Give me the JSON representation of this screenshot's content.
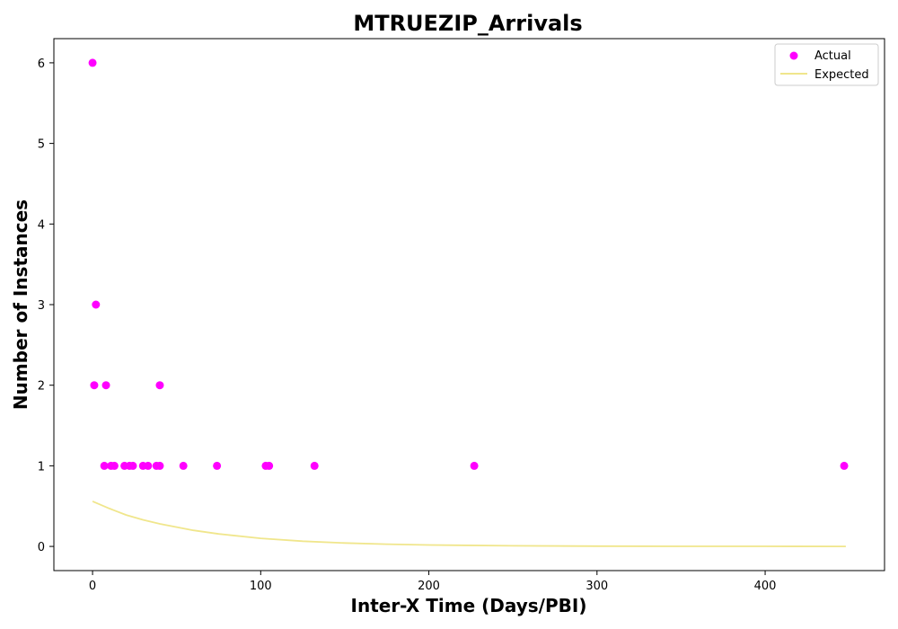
{
  "chart_data": {
    "type": "scatter",
    "title": "MTRUEZIP_Arrivals",
    "xlabel": "Inter-X Time (Days/PBI)",
    "ylabel": "Number of Instances",
    "xlim": [
      -23,
      471
    ],
    "ylim": [
      -0.3,
      6.3
    ],
    "x_ticks": [
      0,
      100,
      200,
      300,
      400
    ],
    "y_ticks": [
      0,
      1,
      2,
      3,
      4,
      5,
      6
    ],
    "grid": false,
    "legend_position": "top-right",
    "series": [
      {
        "name": "Actual",
        "kind": "scatter",
        "color": "#ff00ff",
        "points": [
          {
            "x": 0,
            "y": 6
          },
          {
            "x": 1,
            "y": 2
          },
          {
            "x": 2,
            "y": 3
          },
          {
            "x": 7,
            "y": 1
          },
          {
            "x": 8,
            "y": 2
          },
          {
            "x": 11,
            "y": 1
          },
          {
            "x": 13,
            "y": 1
          },
          {
            "x": 19,
            "y": 1
          },
          {
            "x": 22,
            "y": 1
          },
          {
            "x": 24,
            "y": 1
          },
          {
            "x": 30,
            "y": 1
          },
          {
            "x": 33,
            "y": 1
          },
          {
            "x": 38,
            "y": 1
          },
          {
            "x": 40,
            "y": 1
          },
          {
            "x": 40,
            "y": 2
          },
          {
            "x": 54,
            "y": 1
          },
          {
            "x": 74,
            "y": 1
          },
          {
            "x": 103,
            "y": 1
          },
          {
            "x": 105,
            "y": 1
          },
          {
            "x": 132,
            "y": 1
          },
          {
            "x": 227,
            "y": 1
          },
          {
            "x": 447,
            "y": 1
          }
        ]
      },
      {
        "name": "Expected",
        "kind": "line",
        "color": "#f0e68c",
        "points": [
          {
            "x": 0,
            "y": 0.56
          },
          {
            "x": 10,
            "y": 0.47
          },
          {
            "x": 20,
            "y": 0.39
          },
          {
            "x": 30,
            "y": 0.33
          },
          {
            "x": 40,
            "y": 0.28
          },
          {
            "x": 50,
            "y": 0.24
          },
          {
            "x": 60,
            "y": 0.2
          },
          {
            "x": 75,
            "y": 0.155
          },
          {
            "x": 100,
            "y": 0.1
          },
          {
            "x": 125,
            "y": 0.065
          },
          {
            "x": 150,
            "y": 0.042
          },
          {
            "x": 175,
            "y": 0.028
          },
          {
            "x": 200,
            "y": 0.018
          },
          {
            "x": 250,
            "y": 0.008
          },
          {
            "x": 300,
            "y": 0.003
          },
          {
            "x": 350,
            "y": 0.001
          },
          {
            "x": 400,
            "y": 0.0005
          },
          {
            "x": 448,
            "y": 0.0002
          }
        ]
      }
    ]
  }
}
